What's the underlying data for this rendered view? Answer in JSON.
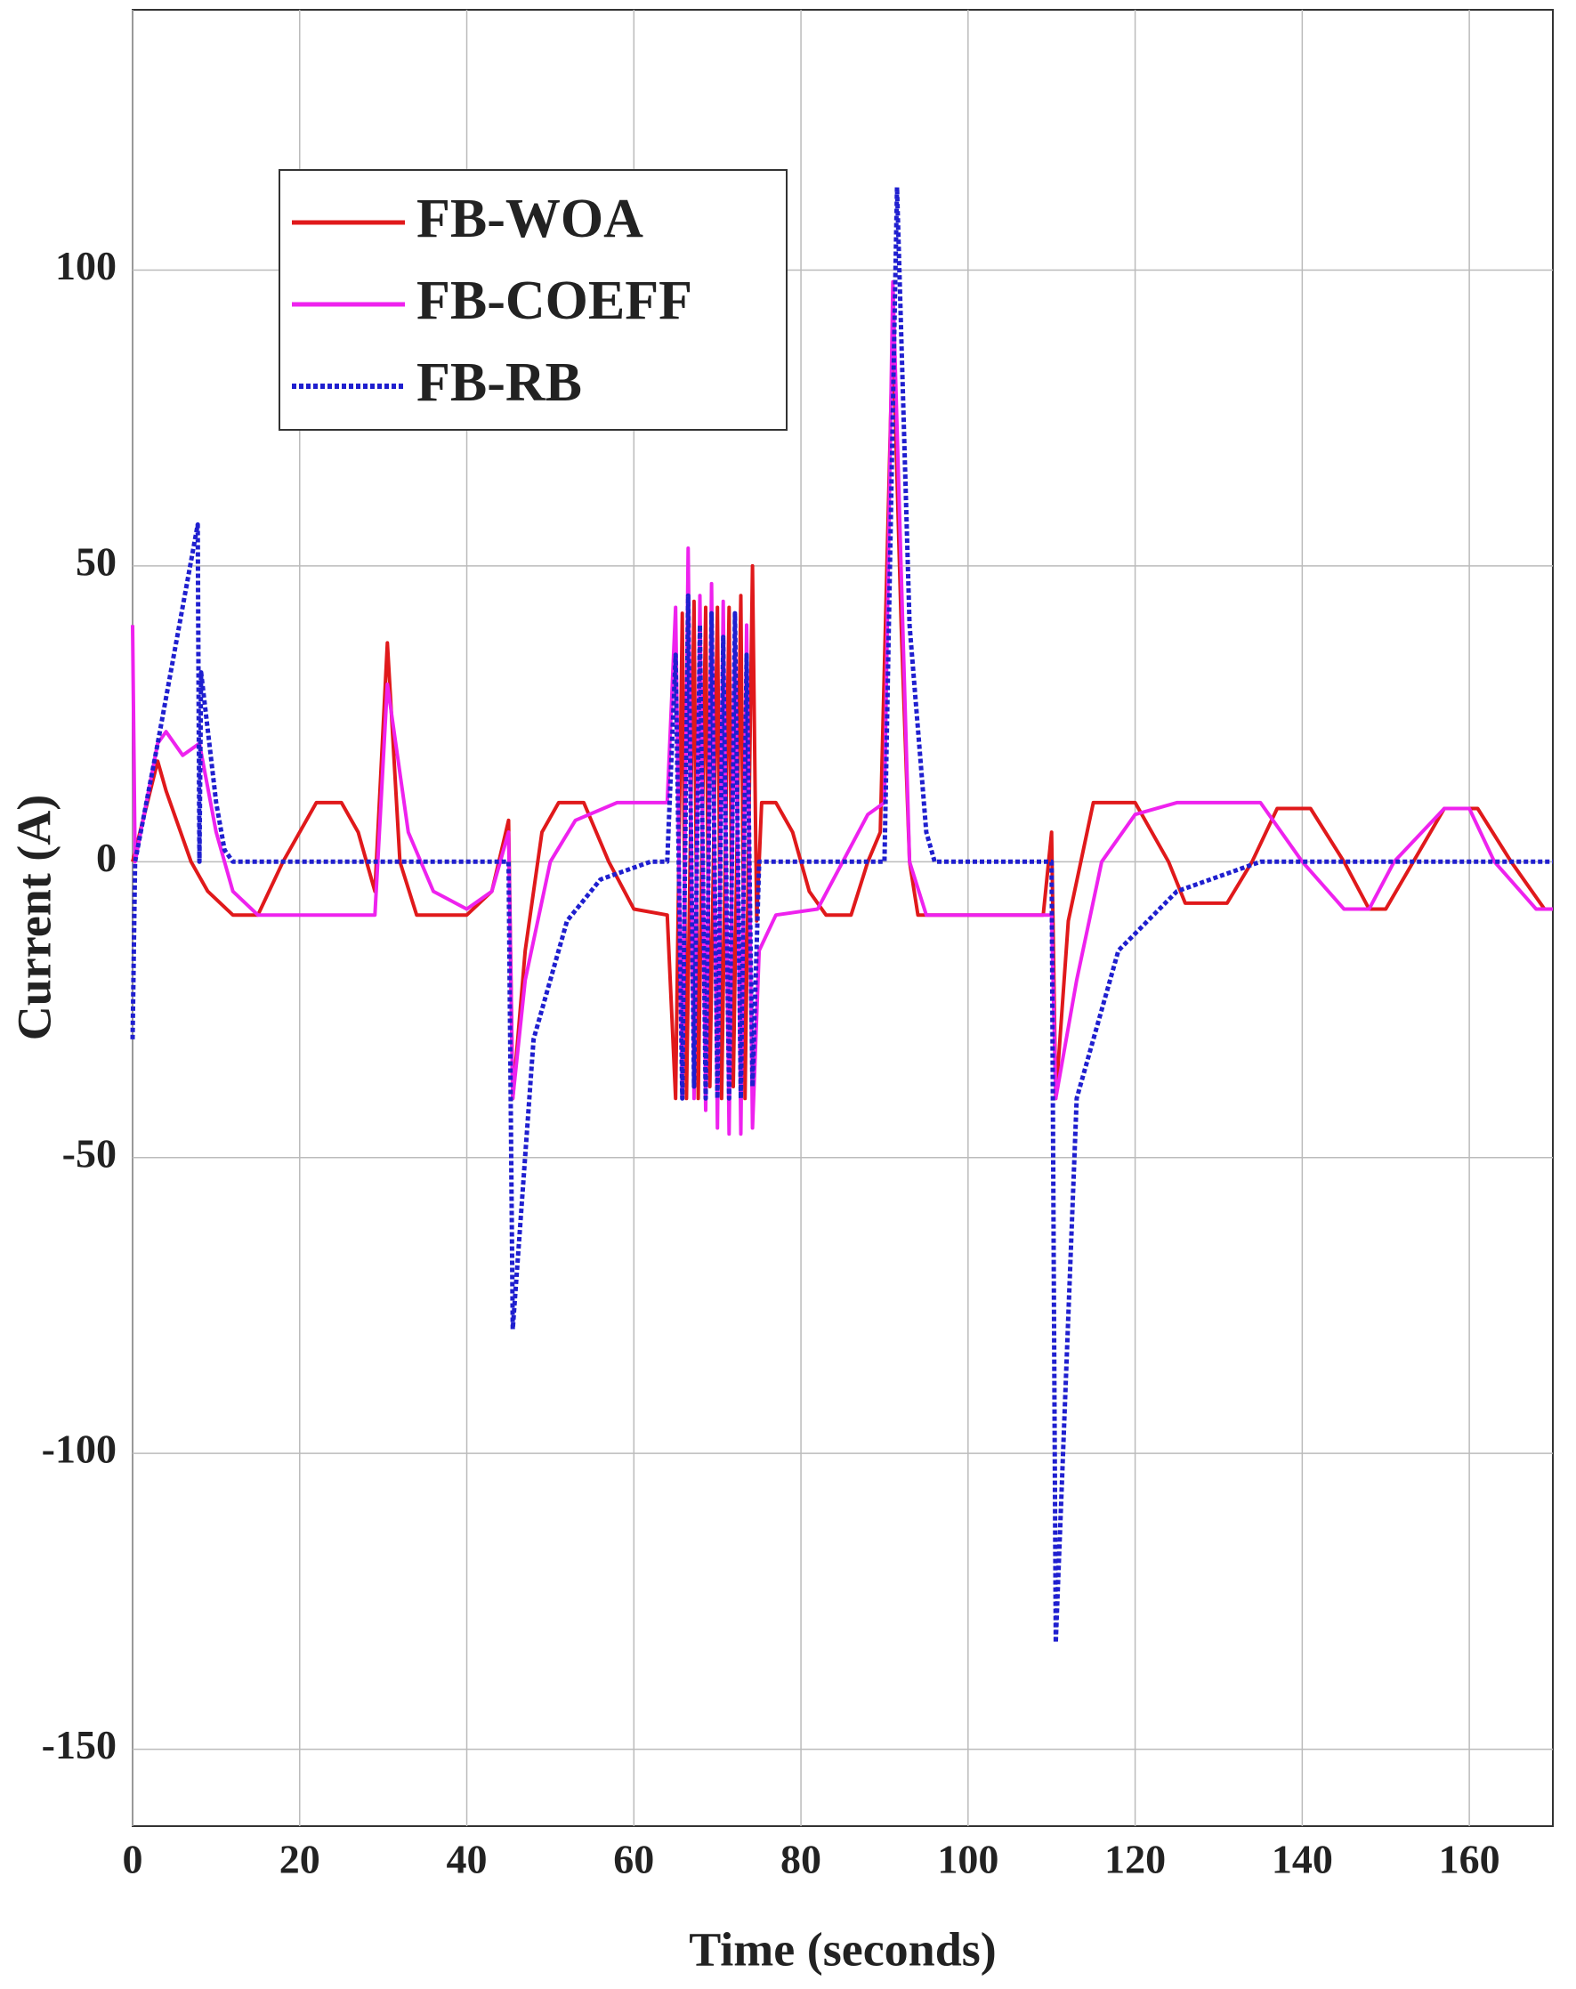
{
  "chart_data": {
    "type": "line",
    "x_label": "Time (seconds)",
    "y_label": "Current (A)",
    "xlim": [
      0,
      170
    ],
    "ylim": [
      -163,
      144
    ],
    "xticks": [
      0,
      20,
      40,
      60,
      80,
      100,
      120,
      140,
      160
    ],
    "yticks": [
      -150,
      -100,
      -50,
      0,
      50,
      100
    ],
    "grid": true,
    "legend": "upper-left",
    "series": [
      {
        "name": "FB-WOA",
        "color": "#e0191b",
        "style": "solid",
        "x": [
          0,
          3,
          4,
          7,
          9,
          12,
          15,
          18,
          22,
          25,
          27,
          29,
          30.5,
          32,
          34,
          40,
          43,
          45,
          45.5,
          47,
          49,
          51,
          54,
          57,
          60,
          64,
          65,
          65.8,
          66.3,
          67.2,
          67.7,
          68.6,
          69.1,
          70,
          70.5,
          71.4,
          71.9,
          72.8,
          73.3,
          74.2,
          74.7,
          75.3,
          77,
          79,
          81,
          83,
          86,
          88,
          89.5,
          91,
          92,
          93,
          94,
          109,
          110,
          110.5,
          112,
          115,
          120,
          124,
          126,
          131,
          134,
          137,
          141,
          145,
          148,
          150,
          157,
          161,
          165,
          169,
          170
        ],
        "values": [
          0,
          17,
          12,
          0,
          -5,
          -9,
          -9,
          0,
          10,
          10,
          5,
          -5,
          37,
          0,
          -9,
          -9,
          -5,
          7,
          -40,
          -15,
          5,
          10,
          10,
          0,
          -8,
          -9,
          -40,
          42,
          -40,
          44,
          -40,
          43,
          -38,
          43,
          -40,
          43,
          -38,
          45,
          -40,
          50,
          -10,
          10,
          10,
          5,
          -5,
          -9,
          -9,
          0,
          5,
          90,
          40,
          0,
          -9,
          -9,
          5,
          -40,
          -10,
          10,
          10,
          0,
          -7,
          -7,
          0,
          9,
          9,
          0,
          -8,
          -8,
          9,
          9,
          0,
          -8,
          -8
        ]
      },
      {
        "name": "FB-COEFF",
        "color": "#ee22ee",
        "style": "solid",
        "x": [
          0,
          0.3,
          3,
          4,
          6,
          8,
          10,
          12,
          15,
          29,
          30.5,
          33,
          36,
          40,
          43,
          45,
          45.5,
          47,
          50,
          53,
          58,
          64,
          65,
          65.8,
          66.5,
          67.2,
          67.9,
          68.6,
          69.3,
          70,
          70.7,
          71.4,
          72.1,
          72.8,
          73.5,
          74.2,
          75,
          77,
          82,
          85,
          88,
          90,
          91,
          93,
          95,
          110,
          110.5,
          113,
          116,
          120,
          125,
          135,
          140,
          145,
          148,
          151,
          157,
          160,
          163,
          168,
          170
        ],
        "values": [
          40,
          0,
          20,
          22,
          18,
          20,
          5,
          -5,
          -9,
          -9,
          30,
          5,
          -5,
          -8,
          -5,
          5,
          -40,
          -20,
          0,
          7,
          10,
          10,
          43,
          -40,
          53,
          -40,
          45,
          -42,
          47,
          -45,
          44,
          -46,
          42,
          -46,
          40,
          -45,
          -15,
          -9,
          -8,
          0,
          8,
          10,
          98,
          0,
          -9,
          -9,
          -40,
          -20,
          0,
          8,
          10,
          10,
          0,
          -8,
          -8,
          0,
          9,
          9,
          0,
          -8,
          -8
        ]
      },
      {
        "name": "FB-RB",
        "color": "#1f1fcf",
        "style": "dotted",
        "x": [
          0,
          0.3,
          3,
          7.8,
          8,
          8.2,
          10,
          11,
          12,
          45,
          45.5,
          48,
          52,
          56,
          62,
          64,
          65,
          65.8,
          66.5,
          67.2,
          67.9,
          68.6,
          69.3,
          70,
          70.7,
          71.4,
          72.1,
          72.8,
          73.5,
          74.2,
          75,
          90,
          91.5,
          93,
          95,
          96,
          110,
          110.5,
          113,
          118,
          125,
          135,
          170
        ],
        "values": [
          -30,
          0,
          20,
          57,
          0,
          32,
          10,
          2,
          0,
          0,
          -79,
          -30,
          -10,
          -3,
          0,
          0,
          35,
          -40,
          45,
          -38,
          40,
          -40,
          42,
          -40,
          38,
          -40,
          42,
          -40,
          35,
          -38,
          0,
          0,
          114,
          40,
          5,
          0,
          0,
          -132,
          -40,
          -15,
          -5,
          0,
          0
        ]
      }
    ]
  }
}
